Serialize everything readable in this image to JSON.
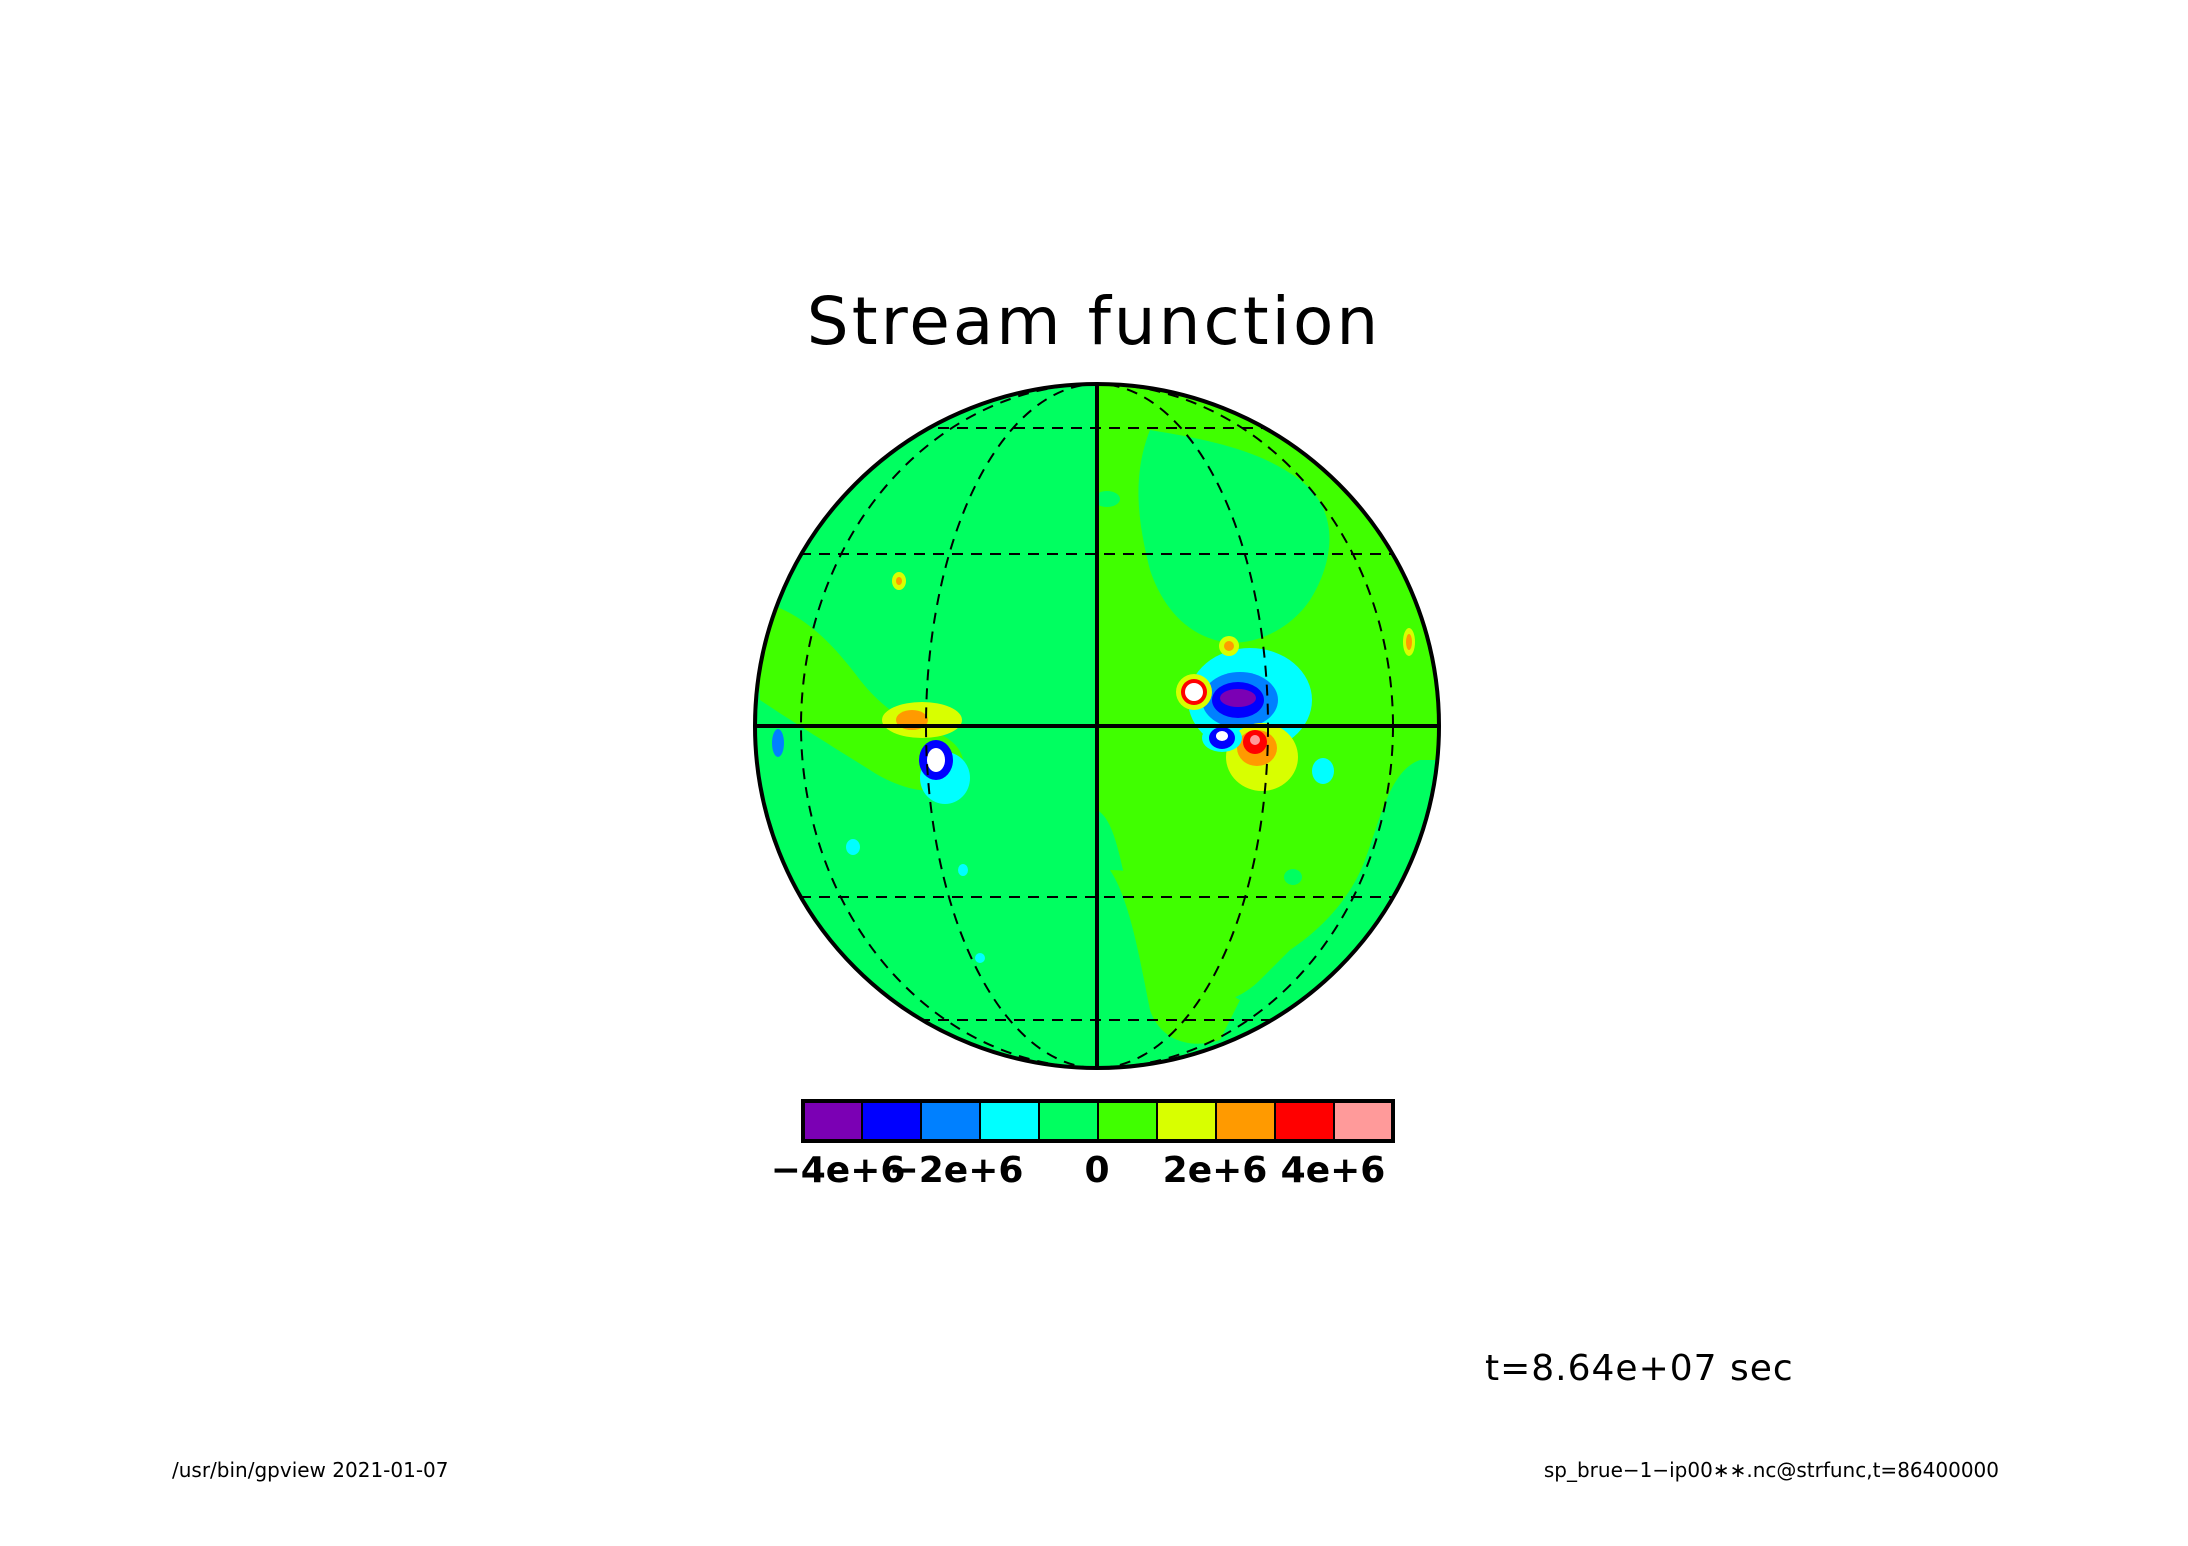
{
  "title": "Stream function",
  "colorbar": {
    "colors": [
      "#7b00b4",
      "#0000ff",
      "#0080ff",
      "#00ffff",
      "#00ff60",
      "#40ff00",
      "#d8ff00",
      "#ff9a00",
      "#ff0000",
      "#ff9a9a"
    ],
    "tick_labels": [
      "−4e+6",
      "−2e+6",
      "0",
      "2e+6",
      "4e+6"
    ]
  },
  "time_label": "t=8.64e+07 sec",
  "footer": {
    "left": "/usr/bin/gpview   2021-01-07",
    "right": "sp_brue−1−ip00∗∗.nc@strfunc,t=86400000"
  }
}
